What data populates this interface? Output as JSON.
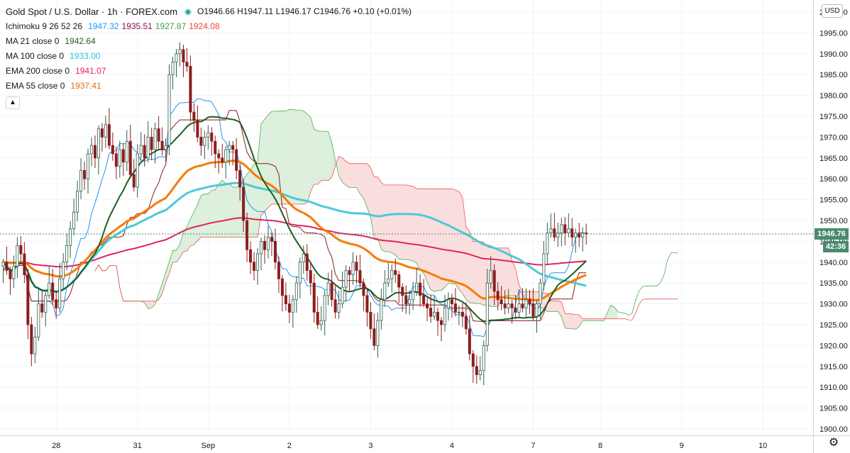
{
  "header": {
    "title": "Gold Spot / U.S. Dollar · 1h · FOREX.com",
    "ohlc": "O1946.66 H1947.11 L1946.17 C1946.76 +0.10 (+0.01%)"
  },
  "indicators": [
    {
      "name": "Ichimoku 9 26 52 26",
      "values": [
        {
          "text": "1947.32",
          "color": "#2196f3"
        },
        {
          "text": "1935.51",
          "color": "#880e4f"
        },
        {
          "text": "1927.87",
          "color": "#43a047"
        },
        {
          "text": "1924.08",
          "color": "#f44336"
        }
      ]
    },
    {
      "name": "MA 21 close 0",
      "values": [
        {
          "text": "1942.64",
          "color": "#1b5e20"
        }
      ]
    },
    {
      "name": "MA 100 close 0",
      "values": [
        {
          "text": "1933.00",
          "color": "#26c6da"
        }
      ]
    },
    {
      "name": "EMA 200 close 0",
      "values": [
        {
          "text": "1941.07",
          "color": "#e91e63"
        }
      ]
    },
    {
      "name": "EMA 55 close 0",
      "values": [
        {
          "text": "1937.41",
          "color": "#ef6c00"
        }
      ]
    }
  ],
  "collapse_icon": "chevron-up-icon",
  "currency": "USD",
  "last_price_label": "1946.76",
  "countdown_label": "42:36",
  "settings_icon": "gear-icon",
  "colors": {
    "up": "#26a69a",
    "down": "#ef5350",
    "candle_dark": "#2e4a3c",
    "ma21": "#1b5e20",
    "ma100": "#4dc9d6",
    "ema200": "#e0245e",
    "ema55": "#f57c00",
    "tenkan": "#2196f3",
    "kijun": "#8b1a1a",
    "cloud_bull": "#cfe8cf",
    "cloud_bear": "#f8d0d0"
  },
  "chart_data": {
    "type": "candlestick",
    "title": "Gold Spot / U.S. Dollar · 1h · FOREX.com",
    "ylim": [
      1898,
      2001
    ],
    "y_ticks": [
      1900,
      1905,
      1910,
      1915,
      1920,
      1925,
      1930,
      1935,
      1940,
      1945,
      1950,
      1955,
      1960,
      1965,
      1970,
      1975,
      1980,
      1985,
      1990,
      1995,
      2000
    ],
    "y_tick_labels": [
      "1900.00",
      "1905.00",
      "1910.00",
      "1915.00",
      "1920.00",
      "1925.00",
      "1930.00",
      "1935.00",
      "1940.00",
      "1945.00",
      "1950.00",
      "1955.00",
      "1960.00",
      "1965.00",
      "1970.00",
      "1975.00",
      "1980.00",
      "1985.00",
      "1990.00",
      "1995.00",
      "2000.00"
    ],
    "x_ticks": [
      {
        "label": "28",
        "bar": 15
      },
      {
        "label": "31",
        "bar": 38
      },
      {
        "label": "Sep",
        "bar": 58
      },
      {
        "label": "2",
        "bar": 81
      },
      {
        "label": "3",
        "bar": 104
      },
      {
        "label": "4",
        "bar": 127
      },
      {
        "label": "7",
        "bar": 150
      },
      {
        "label": "8",
        "bar": 169
      },
      {
        "label": "9",
        "bar": 192
      },
      {
        "label": "10",
        "bar": 215
      }
    ],
    "last_price": 1946.76,
    "ohlc_close": [
      1940,
      1938,
      1936,
      1939,
      1944,
      1942,
      1937,
      1925,
      1918,
      1922,
      1930,
      1928,
      1932,
      1935,
      1931,
      1929,
      1936,
      1940,
      1944,
      1948,
      1952,
      1957,
      1962,
      1960,
      1966,
      1968,
      1965,
      1972,
      1970,
      1973,
      1968,
      1966,
      1963,
      1967,
      1964,
      1969,
      1961,
      1958,
      1966,
      1968,
      1965,
      1970,
      1967,
      1972,
      1969,
      1967,
      1968,
      1985,
      1988,
      1990,
      1991,
      1988,
      1987,
      1976,
      1974,
      1970,
      1968,
      1970,
      1971,
      1969,
      1966,
      1965,
      1964,
      1967,
      1968,
      1967,
      1962,
      1958,
      1950,
      1943,
      1940,
      1938,
      1942,
      1945,
      1943,
      1946,
      1945,
      1940,
      1936,
      1932,
      1930,
      1928,
      1931,
      1935,
      1940,
      1942,
      1938,
      1935,
      1928,
      1925,
      1926,
      1932,
      1935,
      1931,
      1928,
      1930,
      1934,
      1938,
      1937,
      1940,
      1938,
      1935,
      1932,
      1928,
      1924,
      1920,
      1926,
      1931,
      1935,
      1936,
      1938,
      1937,
      1934,
      1932,
      1930,
      1931,
      1933,
      1935,
      1932,
      1930,
      1929,
      1927,
      1928,
      1926,
      1925,
      1929,
      1931,
      1930,
      1928,
      1928,
      1927,
      1924,
      1918,
      1915,
      1913,
      1914,
      1920,
      1935,
      1938,
      1933,
      1931,
      1930,
      1929,
      1930,
      1929,
      1928,
      1930,
      1929,
      1931,
      1930,
      1927,
      1930,
      1935,
      1942,
      1947,
      1948,
      1946,
      1947,
      1949,
      1947,
      1948,
      1946,
      1947,
      1946,
      1947,
      1946.76
    ],
    "series": [
      {
        "name": "MA 21 close 0",
        "last": 1942.64
      },
      {
        "name": "MA 100 close 0",
        "last": 1933.0
      },
      {
        "name": "EMA 200 close 0",
        "last": 1941.07
      },
      {
        "name": "EMA 55 close 0",
        "last": 1937.41
      },
      {
        "name": "Ichimoku 9 26 52 26",
        "values": [
          1947.32,
          1935.51,
          1927.87,
          1924.08
        ]
      }
    ]
  }
}
